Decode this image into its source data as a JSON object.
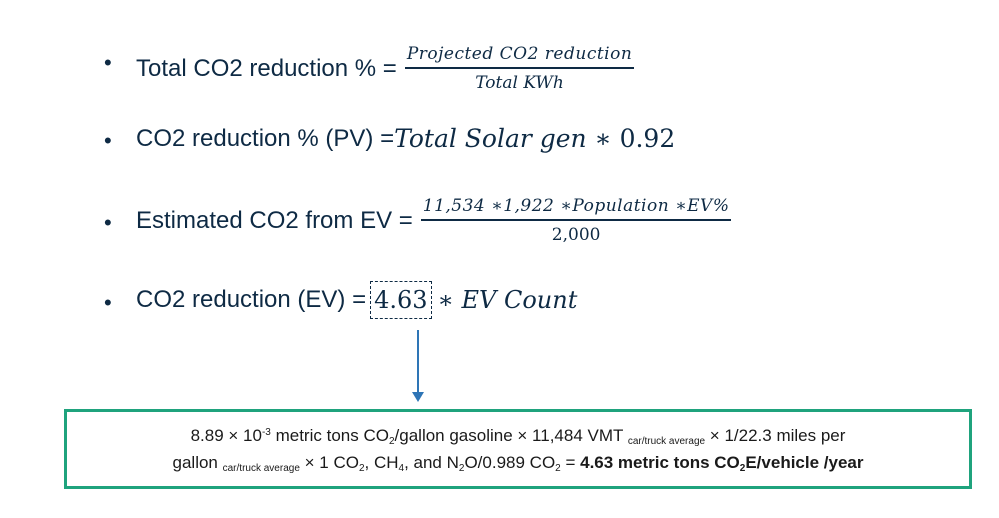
{
  "formulas": {
    "f1": {
      "label": "Total CO2 reduction % =",
      "numerator": "Projected CO2 reduction",
      "denominator": "Total KWh"
    },
    "f2": {
      "label": "CO2 reduction % (PV) =",
      "expr": "Total Solar gen",
      "op": " ∗ ",
      "value": "0.92"
    },
    "f3": {
      "label": "Estimated CO2 from EV =",
      "numerator": "11,534 ∗1,922 ∗Population ∗EV%",
      "denominator": "2,000"
    },
    "f4": {
      "label": "CO2 reduction (EV) =",
      "value": "4.63",
      "expr": "∗ EV Count"
    }
  },
  "bullet": "•",
  "colors": {
    "text": "#0e2a44",
    "box_border": "#1fa37d",
    "arrow": "#2e75b6"
  },
  "box": {
    "lines": [
      [
        {
          "t": "8.89 × 10"
        },
        {
          "t": "-3",
          "k": "sup"
        },
        {
          "t": " metric tons CO"
        },
        {
          "t": "2",
          "k": "sub"
        },
        {
          "t": "/gallon gasoline × 11,484 VMT "
        },
        {
          "t": "car/truck average",
          "k": "sub"
        },
        {
          "t": " × 1/22.3 miles per"
        }
      ],
      [
        {
          "t": "gallon "
        },
        {
          "t": "car/truck average",
          "k": "sub"
        },
        {
          "t": " × 1 CO"
        },
        {
          "t": "2",
          "k": "sub"
        },
        {
          "t": ", CH"
        },
        {
          "t": "4",
          "k": "sub"
        },
        {
          "t": ", and N"
        },
        {
          "t": "2",
          "k": "sub"
        },
        {
          "t": "O/0.989 CO"
        },
        {
          "t": "2",
          "k": "sub"
        },
        {
          "t": " = "
        },
        {
          "t": "4.63 metric tons CO",
          "k": "b"
        },
        {
          "t": "2",
          "k": "bsub"
        },
        {
          "t": "E/vehicle /year",
          "k": "b"
        }
      ]
    ]
  }
}
